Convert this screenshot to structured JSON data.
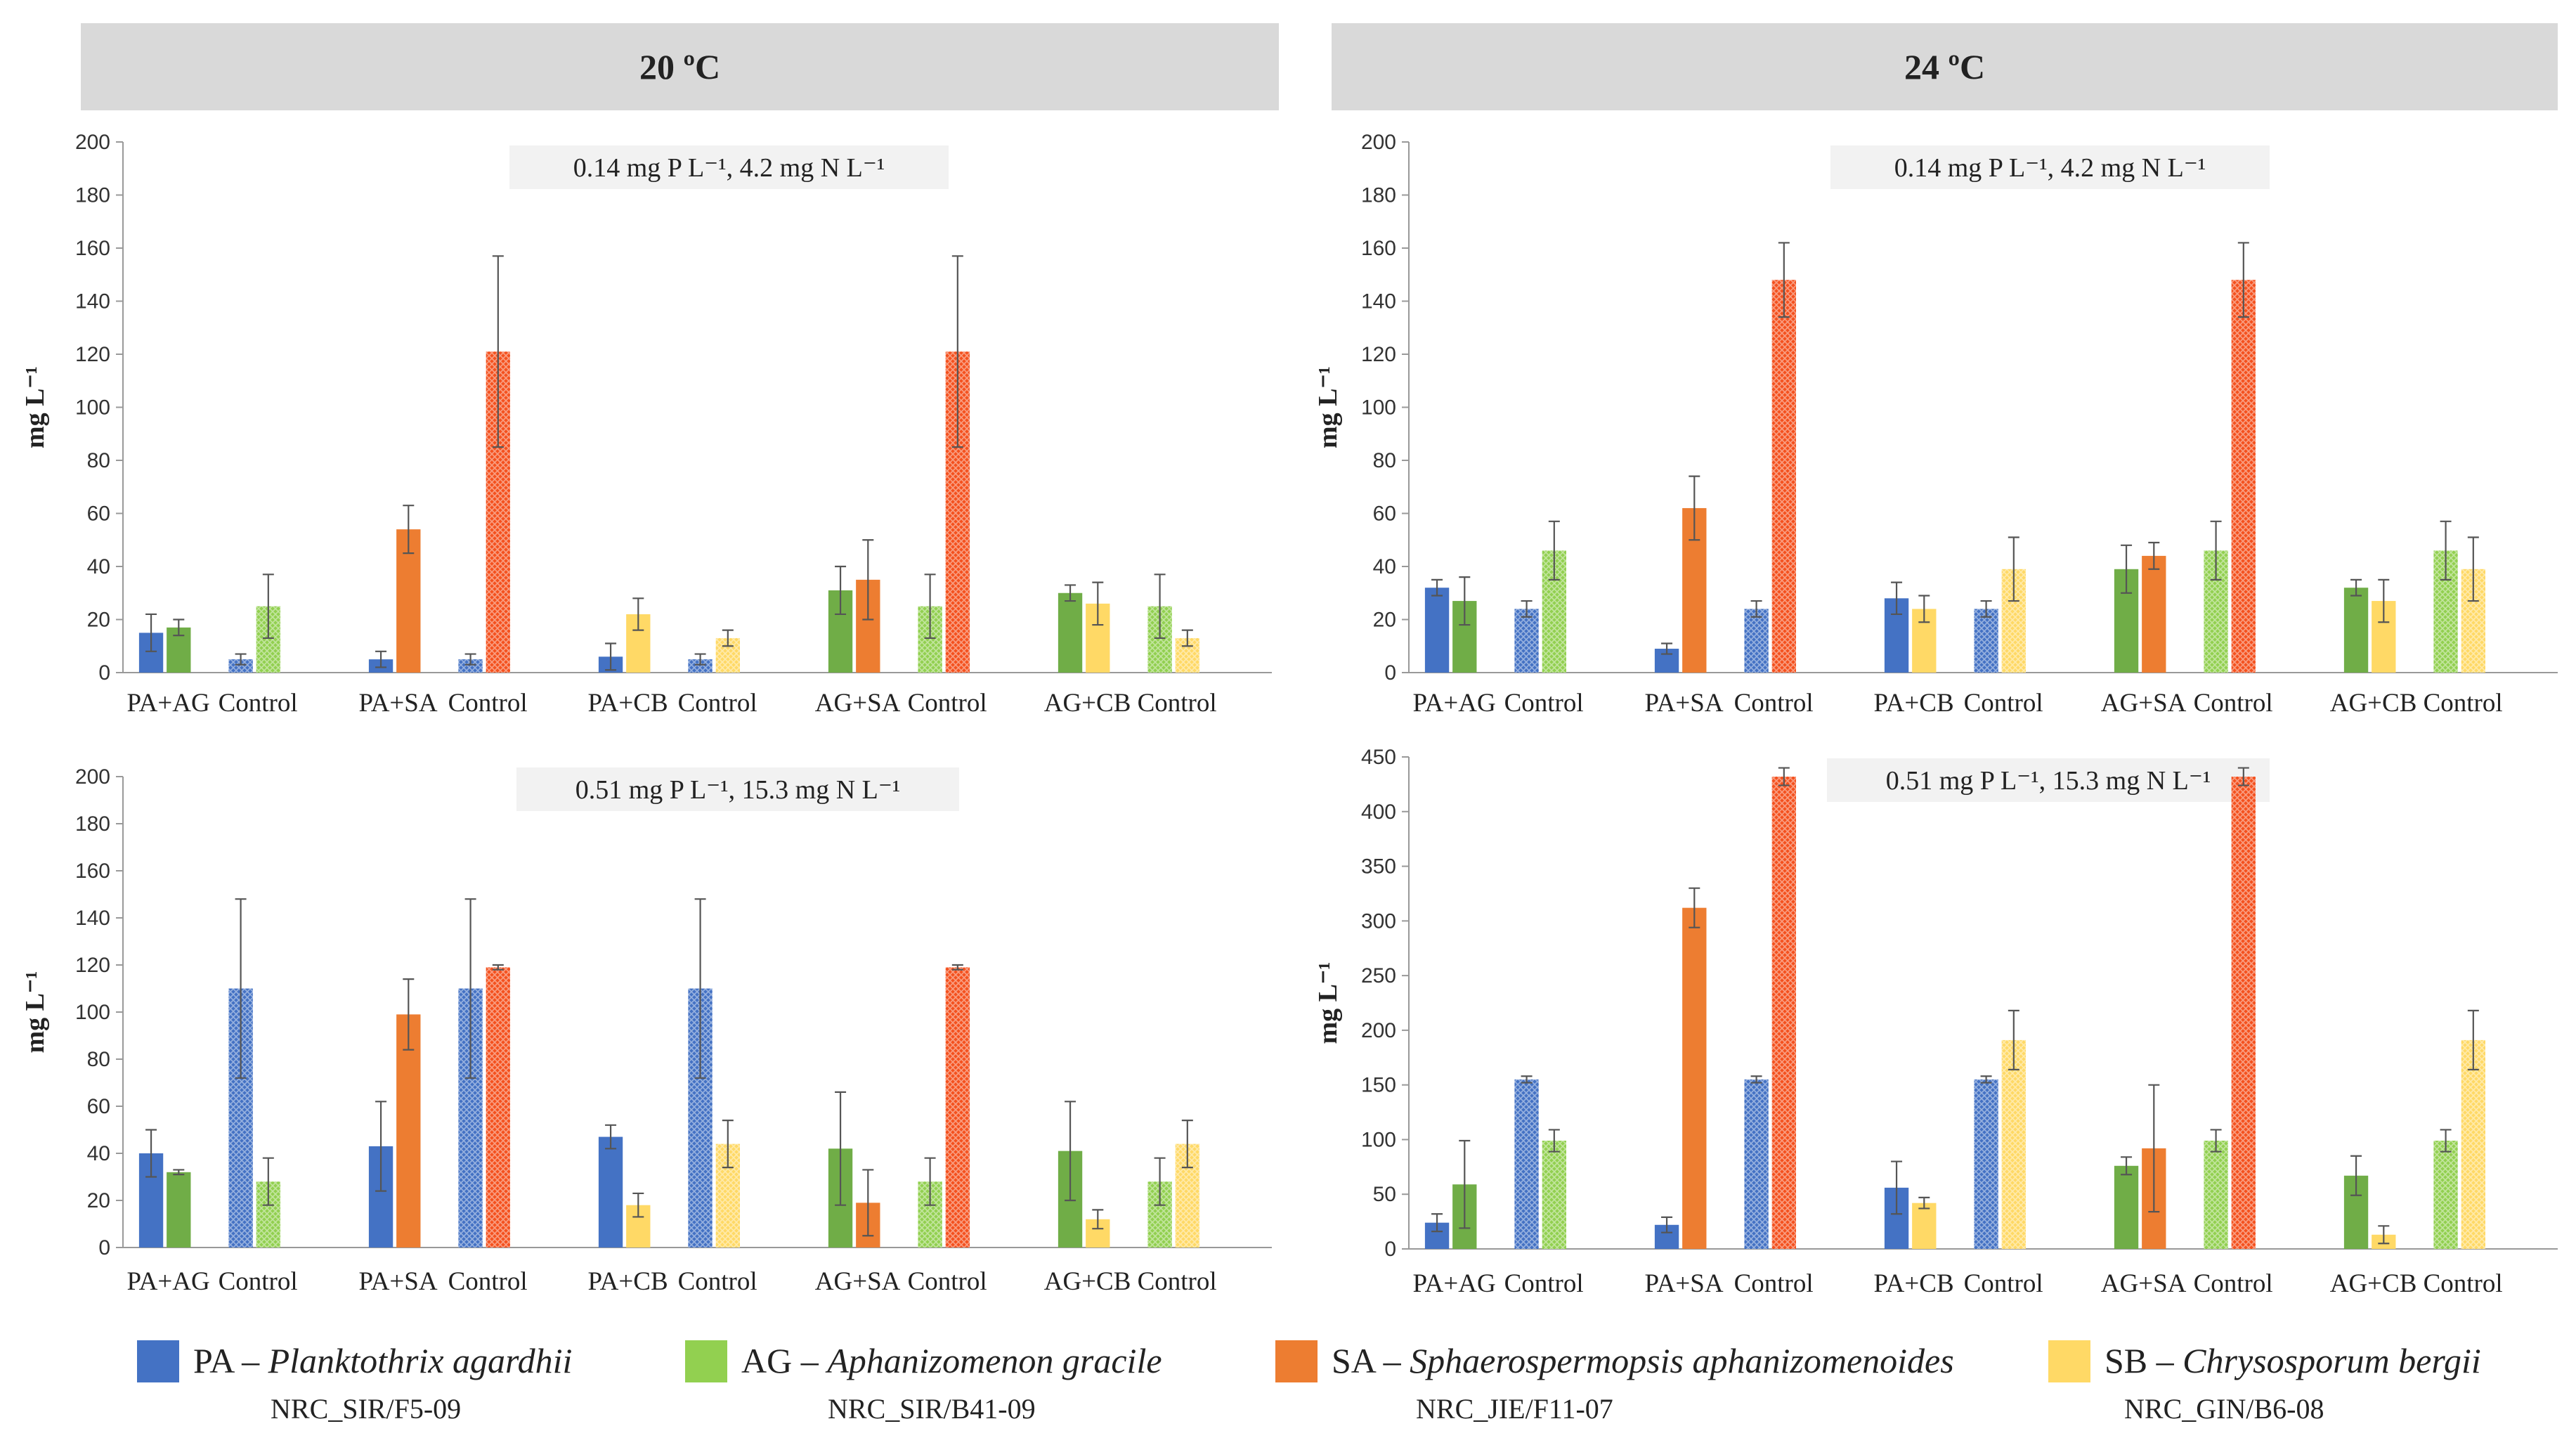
{
  "headers": {
    "left": "20 ºC",
    "right": "24 ºC"
  },
  "legend": [
    {
      "code": "PA",
      "dash": "–",
      "species": "Planktothrix agardhii",
      "strain": "NRC_SIR/F5-09",
      "color": "#4472c4"
    },
    {
      "code": "AG",
      "dash": "–",
      "species": "Aphanizomenon gracile",
      "strain": "NRC_SIR/B41-09",
      "color": "#70ad47"
    },
    {
      "code": "SA",
      "dash": "–",
      "species": "Sphaerospermopsis aphanizomenoides",
      "strain": "NRC_JIE/F11-07",
      "color": "#ed7d31"
    },
    {
      "code": "SB",
      "dash": "–",
      "species": "Chrysosporum bergii",
      "strain": "NRC_GIN/B6-08",
      "color": "#ffd966"
    }
  ],
  "chart_data": [
    {
      "type": "bar",
      "panel": "top-left",
      "temperature": "20 ºC",
      "subtitle": "0.14 mg P L⁻¹, 4.2 mg N L⁻¹",
      "ylabel": "mg L⁻¹",
      "ylim": [
        0,
        200
      ],
      "yticks": [
        0,
        20,
        40,
        60,
        80,
        100,
        120,
        140,
        160,
        180,
        200
      ],
      "groups": [
        {
          "bars": [
            {
              "label": "PA+AG",
              "species": "PA",
              "value": 15,
              "err": 7,
              "control": false
            },
            {
              "label": "PA+AG",
              "species": "AG",
              "value": 17,
              "err": 3,
              "control": false
            },
            {
              "label": "Control",
              "species": "PA",
              "value": 5,
              "err": 2,
              "control": true
            },
            {
              "label": "Control",
              "species": "AG",
              "value": 25,
              "err": 12,
              "control": true
            }
          ]
        },
        {
          "bars": [
            {
              "label": "PA+SA",
              "species": "PA",
              "value": 5,
              "err": 3,
              "control": false
            },
            {
              "label": "PA+SA",
              "species": "SA",
              "value": 54,
              "err": 9,
              "control": false
            },
            {
              "label": "Control",
              "species": "PA",
              "value": 5,
              "err": 2,
              "control": true
            },
            {
              "label": "Control",
              "species": "SA",
              "value": 121,
              "err": 36,
              "control": true
            }
          ]
        },
        {
          "bars": [
            {
              "label": "PA+CB",
              "species": "PA",
              "value": 6,
              "err": 5,
              "control": false
            },
            {
              "label": "PA+CB",
              "species": "SB",
              "value": 22,
              "err": 6,
              "control": false
            },
            {
              "label": "Control",
              "species": "PA",
              "value": 5,
              "err": 2,
              "control": true
            },
            {
              "label": "Control",
              "species": "SB",
              "value": 13,
              "err": 3,
              "control": true
            }
          ]
        },
        {
          "bars": [
            {
              "label": "AG+SA",
              "species": "AG",
              "value": 31,
              "err": 9,
              "control": false
            },
            {
              "label": "AG+SA",
              "species": "SA",
              "value": 35,
              "err": 15,
              "control": false
            },
            {
              "label": "Control",
              "species": "AG",
              "value": 25,
              "err": 12,
              "control": true
            },
            {
              "label": "Control",
              "species": "SA",
              "value": 121,
              "err": 36,
              "control": true
            }
          ]
        },
        {
          "bars": [
            {
              "label": "AG+CB",
              "species": "AG",
              "value": 30,
              "err": 3,
              "control": false
            },
            {
              "label": "AG+CB",
              "species": "SB",
              "value": 26,
              "err": 8,
              "control": false
            },
            {
              "label": "Control",
              "species": "AG",
              "value": 25,
              "err": 12,
              "control": true
            },
            {
              "label": "Control",
              "species": "SB",
              "value": 13,
              "err": 3,
              "control": true
            }
          ]
        }
      ]
    },
    {
      "type": "bar",
      "panel": "top-right",
      "temperature": "24 ºC",
      "subtitle": "0.14 mg P L⁻¹, 4.2 mg N L⁻¹",
      "ylabel": "mg L⁻¹",
      "ylim": [
        0,
        200
      ],
      "yticks": [
        0,
        20,
        40,
        60,
        80,
        100,
        120,
        140,
        160,
        180,
        200
      ],
      "groups": [
        {
          "bars": [
            {
              "label": "PA+AG",
              "species": "PA",
              "value": 32,
              "err": 3,
              "control": false
            },
            {
              "label": "PA+AG",
              "species": "AG",
              "value": 27,
              "err": 9,
              "control": false
            },
            {
              "label": "Control",
              "species": "PA",
              "value": 24,
              "err": 3,
              "control": true
            },
            {
              "label": "Control",
              "species": "AG",
              "value": 46,
              "err": 11,
              "control": true
            }
          ]
        },
        {
          "bars": [
            {
              "label": "PA+SA",
              "species": "PA",
              "value": 9,
              "err": 2,
              "control": false
            },
            {
              "label": "PA+SA",
              "species": "SA",
              "value": 62,
              "err": 12,
              "control": false
            },
            {
              "label": "Control",
              "species": "PA",
              "value": 24,
              "err": 3,
              "control": true
            },
            {
              "label": "Control",
              "species": "SA",
              "value": 148,
              "err": 14,
              "control": true
            }
          ]
        },
        {
          "bars": [
            {
              "label": "PA+CB",
              "species": "PA",
              "value": 28,
              "err": 6,
              "control": false
            },
            {
              "label": "PA+CB",
              "species": "SB",
              "value": 24,
              "err": 5,
              "control": false
            },
            {
              "label": "Control",
              "species": "PA",
              "value": 24,
              "err": 3,
              "control": true
            },
            {
              "label": "Control",
              "species": "SB",
              "value": 39,
              "err": 12,
              "control": true
            }
          ]
        },
        {
          "bars": [
            {
              "label": "AG+SA",
              "species": "AG",
              "value": 39,
              "err": 9,
              "control": false
            },
            {
              "label": "AG+SA",
              "species": "SA",
              "value": 44,
              "err": 5,
              "control": false
            },
            {
              "label": "Control",
              "species": "AG",
              "value": 46,
              "err": 11,
              "control": true
            },
            {
              "label": "Control",
              "species": "SA",
              "value": 148,
              "err": 14,
              "control": true
            }
          ]
        },
        {
          "bars": [
            {
              "label": "AG+CB",
              "species": "AG",
              "value": 32,
              "err": 3,
              "control": false
            },
            {
              "label": "AG+CB",
              "species": "SB",
              "value": 27,
              "err": 8,
              "control": false
            },
            {
              "label": "Control",
              "species": "AG",
              "value": 46,
              "err": 11,
              "control": true
            },
            {
              "label": "Control",
              "species": "SB",
              "value": 39,
              "err": 12,
              "control": true
            }
          ]
        }
      ]
    },
    {
      "type": "bar",
      "panel": "bottom-left",
      "temperature": "20 ºC",
      "subtitle": "0.51 mg P L⁻¹, 15.3 mg N L⁻¹",
      "ylabel": "mg L⁻¹",
      "ylim": [
        0,
        200
      ],
      "yticks": [
        0,
        20,
        40,
        60,
        80,
        100,
        120,
        140,
        160,
        180,
        200
      ],
      "groups": [
        {
          "bars": [
            {
              "label": "PA+AG",
              "species": "PA",
              "value": 40,
              "err": 10,
              "control": false
            },
            {
              "label": "PA+AG",
              "species": "AG",
              "value": 32,
              "err": 1,
              "control": false
            },
            {
              "label": "Control",
              "species": "PA",
              "value": 110,
              "err": 38,
              "control": true
            },
            {
              "label": "Control",
              "species": "AG",
              "value": 28,
              "err": 10,
              "control": true
            }
          ]
        },
        {
          "bars": [
            {
              "label": "PA+SA",
              "species": "PA",
              "value": 43,
              "err": 19,
              "control": false
            },
            {
              "label": "PA+SA",
              "species": "SA",
              "value": 99,
              "err": 15,
              "control": false
            },
            {
              "label": "Control",
              "species": "PA",
              "value": 110,
              "err": 38,
              "control": true
            },
            {
              "label": "Control",
              "species": "SA",
              "value": 119,
              "err": 1,
              "control": true
            }
          ]
        },
        {
          "bars": [
            {
              "label": "PA+CB",
              "species": "PA",
              "value": 47,
              "err": 5,
              "control": false
            },
            {
              "label": "PA+CB",
              "species": "SB",
              "value": 18,
              "err": 5,
              "control": false
            },
            {
              "label": "Control",
              "species": "PA",
              "value": 110,
              "err": 38,
              "control": true
            },
            {
              "label": "Control",
              "species": "SB",
              "value": 44,
              "err": 10,
              "control": true
            }
          ]
        },
        {
          "bars": [
            {
              "label": "AG+SA",
              "species": "AG",
              "value": 42,
              "err": 24,
              "control": false
            },
            {
              "label": "AG+SA",
              "species": "SA",
              "value": 19,
              "err": 14,
              "control": false
            },
            {
              "label": "Control",
              "species": "AG",
              "value": 28,
              "err": 10,
              "control": true
            },
            {
              "label": "Control",
              "species": "SA",
              "value": 119,
              "err": 1,
              "control": true
            }
          ]
        },
        {
          "bars": [
            {
              "label": "AG+CB",
              "species": "AG",
              "value": 41,
              "err": 21,
              "control": false
            },
            {
              "label": "AG+CB",
              "species": "SB",
              "value": 12,
              "err": 4,
              "control": false
            },
            {
              "label": "Control",
              "species": "AG",
              "value": 28,
              "err": 10,
              "control": true
            },
            {
              "label": "Control",
              "species": "SB",
              "value": 44,
              "err": 10,
              "control": true
            }
          ]
        }
      ]
    },
    {
      "type": "bar",
      "panel": "bottom-right",
      "temperature": "24 ºC",
      "subtitle": "0.51 mg P L⁻¹, 15.3 mg N L⁻¹",
      "ylabel": "mg L⁻¹",
      "ylim": [
        0,
        450
      ],
      "yticks": [
        0,
        50,
        100,
        150,
        200,
        250,
        300,
        350,
        400,
        450
      ],
      "groups": [
        {
          "bars": [
            {
              "label": "PA+AG",
              "species": "PA",
              "value": 24,
              "err": 8,
              "control": false
            },
            {
              "label": "PA+AG",
              "species": "AG",
              "value": 59,
              "err": 40,
              "control": false
            },
            {
              "label": "Control",
              "species": "PA",
              "value": 155,
              "err": 3,
              "control": true
            },
            {
              "label": "Control",
              "species": "AG",
              "value": 99,
              "err": 10,
              "control": true
            }
          ]
        },
        {
          "bars": [
            {
              "label": "PA+SA",
              "species": "PA",
              "value": 22,
              "err": 7,
              "control": false
            },
            {
              "label": "PA+SA",
              "species": "SA",
              "value": 312,
              "err": 18,
              "control": false
            },
            {
              "label": "Control",
              "species": "PA",
              "value": 155,
              "err": 3,
              "control": true
            },
            {
              "label": "Control",
              "species": "SA",
              "value": 432,
              "err": 8,
              "control": true
            }
          ]
        },
        {
          "bars": [
            {
              "label": "PA+CB",
              "species": "PA",
              "value": 56,
              "err": 24,
              "control": false
            },
            {
              "label": "PA+CB",
              "species": "SB",
              "value": 42,
              "err": 5,
              "control": false
            },
            {
              "label": "Control",
              "species": "PA",
              "value": 155,
              "err": 3,
              "control": true
            },
            {
              "label": "Control",
              "species": "SB",
              "value": 191,
              "err": 27,
              "control": true
            }
          ]
        },
        {
          "bars": [
            {
              "label": "AG+SA",
              "species": "AG",
              "value": 76,
              "err": 8,
              "control": false
            },
            {
              "label": "AG+SA",
              "species": "SA",
              "value": 92,
              "err": 58,
              "control": false
            },
            {
              "label": "Control",
              "species": "AG",
              "value": 99,
              "err": 10,
              "control": true
            },
            {
              "label": "Control",
              "species": "SA",
              "value": 432,
              "err": 8,
              "control": true
            }
          ]
        },
        {
          "bars": [
            {
              "label": "AG+CB",
              "species": "AG",
              "value": 67,
              "err": 18,
              "control": false
            },
            {
              "label": "AG+CB",
              "species": "SB",
              "value": 13,
              "err": 8,
              "control": false
            },
            {
              "label": "Control",
              "species": "AG",
              "value": 99,
              "err": 10,
              "control": true
            },
            {
              "label": "Control",
              "species": "SB",
              "value": 191,
              "err": 27,
              "control": true
            }
          ]
        }
      ]
    }
  ]
}
